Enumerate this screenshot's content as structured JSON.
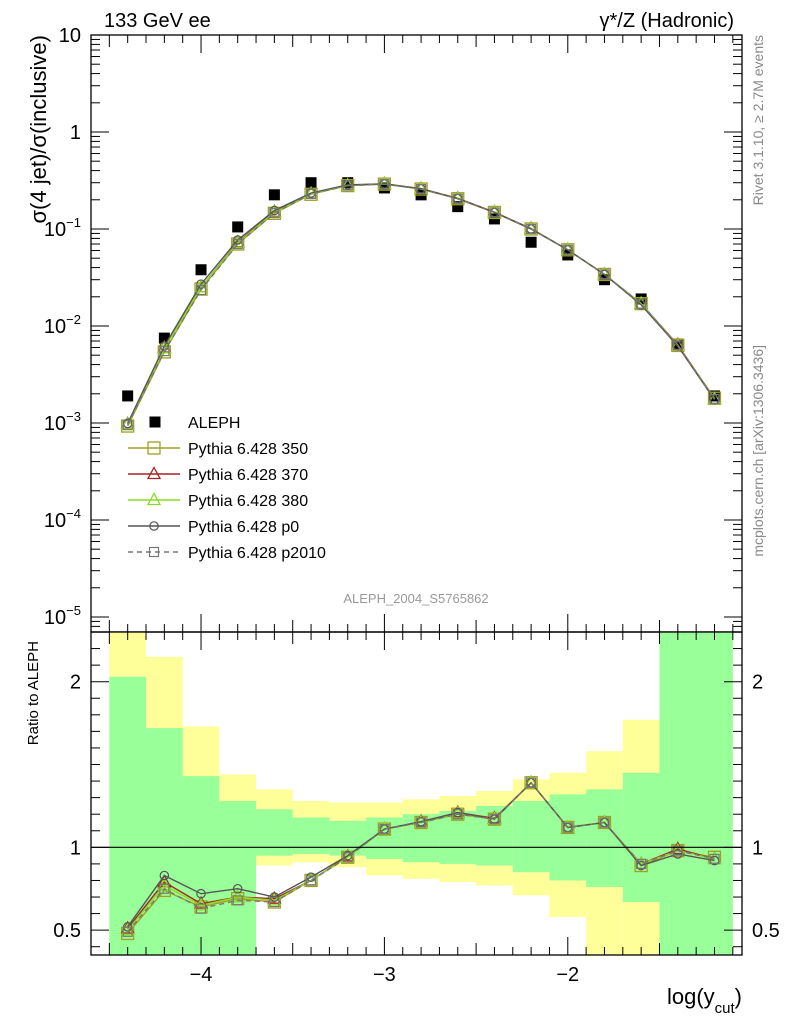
{
  "header": {
    "left": "133 GeV ee",
    "right": "γ*/Z (Hadronic)"
  },
  "side_labels": {
    "rivet": "Rivet 3.1.10, ≥ 2.7M events",
    "mcplots": "mcplots.cern.ch [arXiv:1306.3436]"
  },
  "watermark": "ALEPH_2004_S5765862",
  "main_ylabel": "σ(4 jet)/σ(inclusive)",
  "ratio_ylabel": "Ratio to ALEPH",
  "xlabel": "log(y_cut)",
  "main_yticks": [
    {
      "value": 10,
      "label": "10"
    },
    {
      "value": 1,
      "label": "1"
    },
    {
      "value": 0.1,
      "base": "10",
      "exp": "−1"
    },
    {
      "value": 0.01,
      "base": "10",
      "exp": "−2"
    },
    {
      "value": 0.001,
      "base": "10",
      "exp": "−3"
    },
    {
      "value": 0.0001,
      "base": "10",
      "exp": "−4"
    },
    {
      "value": 1e-05,
      "base": "10",
      "exp": "−5"
    }
  ],
  "ratio_yticks": [
    {
      "value": 0.5,
      "label": "0.5"
    },
    {
      "value": 1,
      "label": "1"
    },
    {
      "value": 2,
      "label": "2"
    }
  ],
  "xticks": [
    {
      "value": -4,
      "label": "−4"
    },
    {
      "value": -3,
      "label": "−3"
    },
    {
      "value": -2,
      "label": "−2"
    }
  ],
  "chart_data": {
    "type": "scatter",
    "xlabel": "log(y_cut)",
    "ylabel": "σ(4 jet)/σ(inclusive)",
    "xlim": [
      -4.6,
      -1.05
    ],
    "ylim": [
      7e-06,
      10
    ],
    "yscale": "log",
    "ratio_ylim": [
      0.35,
      2.3
    ],
    "x": [
      -4.4,
      -4.2,
      -4.0,
      -3.8,
      -3.6,
      -3.4,
      -3.2,
      -3.0,
      -2.8,
      -2.6,
      -2.4,
      -2.2,
      -2.0,
      -1.8,
      -1.6,
      -1.4,
      -1.2
    ],
    "bin_edges": [
      -4.5,
      -4.3,
      -4.1,
      -3.9,
      -3.7,
      -3.5,
      -3.3,
      -3.1,
      -2.9,
      -2.7,
      -2.5,
      -2.3,
      -2.1,
      -1.9,
      -1.7,
      -1.5,
      -1.3,
      -1.1
    ],
    "band_yellow": {
      "lo": [
        0.35,
        0.35,
        0.35,
        0.86,
        0.89,
        0.91,
        0.88,
        0.83,
        0.81,
        0.79,
        0.77,
        0.71,
        0.58,
        0.35,
        0.35,
        0.35,
        0.35
      ],
      "hi": [
        2.3,
        2.15,
        1.73,
        1.44,
        1.35,
        1.28,
        1.27,
        1.27,
        1.29,
        1.31,
        1.34,
        1.41,
        1.45,
        1.58,
        1.77,
        2.3,
        2.3
      ]
    },
    "band_green": {
      "lo": [
        0.35,
        0.35,
        0.35,
        0.35,
        0.95,
        0.96,
        0.95,
        0.93,
        0.91,
        0.9,
        0.89,
        0.85,
        0.8,
        0.76,
        0.67,
        0.35,
        0.35
      ],
      "hi": [
        2.03,
        1.72,
        1.43,
        1.28,
        1.23,
        1.18,
        1.16,
        1.18,
        1.2,
        1.22,
        1.25,
        1.28,
        1.32,
        1.35,
        1.45,
        2.3,
        2.3
      ]
    },
    "series": [
      {
        "name": "ALEPH",
        "kind": "data",
        "color": "#000000",
        "marker": "filled-square",
        "values": [
          0.0019,
          0.0075,
          0.038,
          0.105,
          0.225,
          0.3,
          0.3,
          0.265,
          0.225,
          0.17,
          0.127,
          0.073,
          0.054,
          0.03,
          0.019,
          0.0065,
          0.0019
        ]
      },
      {
        "name": "Pythia 6.428 350",
        "color": "#a0a020",
        "marker": "open-square",
        "dash": "",
        "values": [
          0.00093,
          0.0054,
          0.024,
          0.07,
          0.145,
          0.228,
          0.28,
          0.29,
          0.258,
          0.205,
          0.148,
          0.1,
          0.061,
          0.034,
          0.017,
          0.0063,
          0.0018
        ],
        "ratio": [
          0.48,
          0.74,
          0.64,
          0.69,
          0.67,
          0.8,
          0.94,
          1.11,
          1.15,
          1.2,
          1.17,
          1.39,
          1.12,
          1.15,
          0.89,
          0.98,
          0.94
        ]
      },
      {
        "name": "Pythia 6.428 370",
        "color": "#aa2020",
        "marker": "open-triangle",
        "dash": "",
        "values": [
          0.00098,
          0.006,
          0.025,
          0.073,
          0.15,
          0.232,
          0.283,
          0.292,
          0.26,
          0.207,
          0.149,
          0.101,
          0.061,
          0.034,
          0.017,
          0.0064,
          0.00177
        ],
        "ratio": [
          0.51,
          0.79,
          0.66,
          0.7,
          0.69,
          0.8,
          0.945,
          1.11,
          1.155,
          1.21,
          1.175,
          1.39,
          1.12,
          1.15,
          0.9,
          0.99,
          0.93
        ]
      },
      {
        "name": "Pythia 6.428 380",
        "color": "#88dd22",
        "marker": "open-triangle",
        "dash": "",
        "values": [
          0.00097,
          0.0059,
          0.025,
          0.072,
          0.148,
          0.23,
          0.282,
          0.291,
          0.259,
          0.206,
          0.148,
          0.1,
          0.061,
          0.034,
          0.017,
          0.0063,
          0.00177
        ],
        "ratio": [
          0.5,
          0.77,
          0.65,
          0.7,
          0.68,
          0.8,
          0.94,
          1.11,
          1.15,
          1.205,
          1.17,
          1.39,
          1.12,
          1.15,
          0.9,
          0.98,
          0.93
        ]
      },
      {
        "name": "Pythia 6.428 p0",
        "color": "#555555",
        "marker": "open-circle",
        "dash": "",
        "values": [
          0.00099,
          0.0062,
          0.027,
          0.077,
          0.155,
          0.235,
          0.285,
          0.292,
          0.26,
          0.206,
          0.148,
          0.1,
          0.061,
          0.034,
          0.0165,
          0.0062,
          0.00174
        ],
        "ratio": [
          0.52,
          0.83,
          0.72,
          0.75,
          0.7,
          0.82,
          0.95,
          1.11,
          1.155,
          1.21,
          1.17,
          1.39,
          1.12,
          1.15,
          0.89,
          0.96,
          0.92
        ]
      },
      {
        "name": "Pythia 6.428 p2010",
        "color": "#777777",
        "marker": "open-square-small",
        "dash": "5,4",
        "values": [
          0.00095,
          0.0055,
          0.0235,
          0.07,
          0.146,
          0.23,
          0.28,
          0.29,
          0.258,
          0.205,
          0.148,
          0.1,
          0.061,
          0.034,
          0.017,
          0.0063,
          0.00177
        ],
        "ratio": [
          0.49,
          0.75,
          0.63,
          0.68,
          0.67,
          0.8,
          0.94,
          1.11,
          1.15,
          1.2,
          1.17,
          1.39,
          1.12,
          1.15,
          0.9,
          0.98,
          0.93
        ]
      }
    ]
  }
}
